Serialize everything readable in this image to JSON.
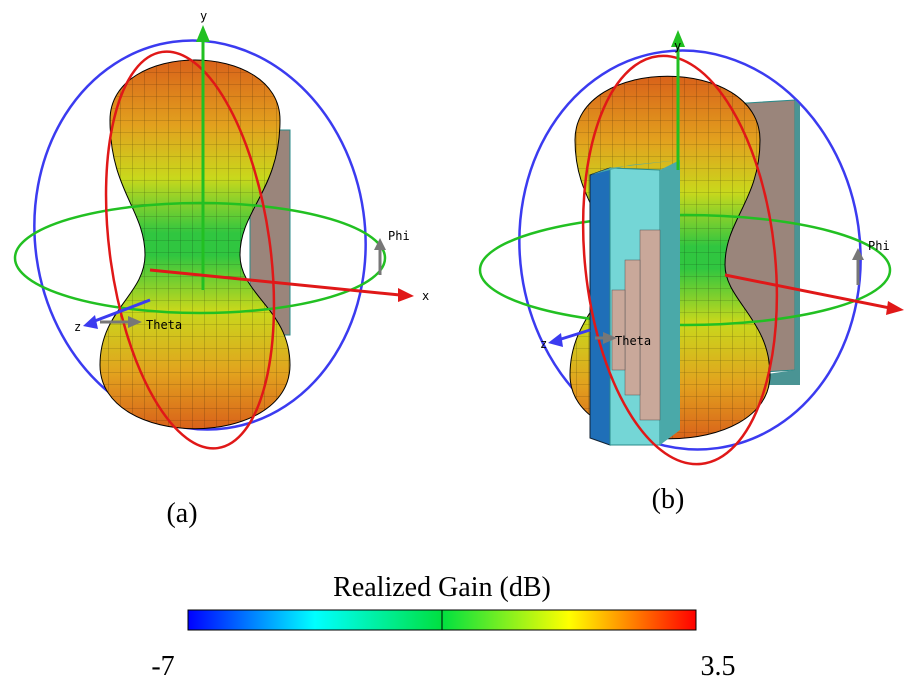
{
  "panels": [
    {
      "label": "(a)",
      "axes": {
        "x": "x",
        "y": "y",
        "z": "z",
        "phi": "Phi",
        "theta": "Theta"
      }
    },
    {
      "label": "(b)",
      "axes": {
        "y": "y",
        "z": "z",
        "phi": "Phi",
        "theta": "Theta"
      }
    }
  ],
  "colorbar": {
    "title": "Realized Gain (dB)",
    "min": -7,
    "max": 3.5
  }
}
